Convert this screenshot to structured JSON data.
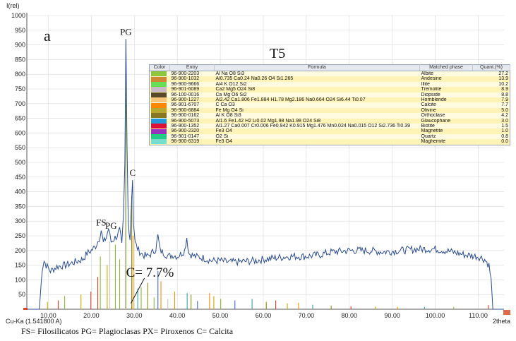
{
  "chart_data": {
    "type": "line",
    "ylabel": "I(rel)",
    "xlabel": "2theta",
    "radiation": "Cu-Ka (1.541800 A)",
    "xlim": [
      5,
      116
    ],
    "ylim": [
      0,
      1000
    ],
    "yticks": [
      50,
      100,
      150,
      200,
      250,
      300,
      350,
      400,
      450,
      500,
      550,
      600,
      650,
      700,
      750,
      800,
      850,
      900,
      950,
      1000
    ],
    "xticks": [
      10,
      20,
      30,
      40,
      50,
      60,
      70,
      80,
      90,
      100,
      110
    ],
    "xtick_labels": [
      "10.00",
      "20.00",
      "30.00",
      "40.00",
      "50.00",
      "60.00",
      "70.00",
      "80.00",
      "90.00",
      "100.00",
      "110.00"
    ],
    "series": [
      {
        "color": "#2b4c8c",
        "points": [
          [
            5,
            0
          ],
          [
            7.9,
            0
          ],
          [
            8.2,
            60
          ],
          [
            8.6,
            140
          ],
          [
            9,
            165
          ],
          [
            9.5,
            150
          ],
          [
            10.5,
            130
          ],
          [
            12,
            145
          ],
          [
            14,
            150
          ],
          [
            16,
            160
          ],
          [
            18,
            170
          ],
          [
            19,
            190
          ],
          [
            20,
            200
          ],
          [
            21,
            215
          ],
          [
            21.8,
            240
          ],
          [
            22.3,
            270
          ],
          [
            22.8,
            225
          ],
          [
            23.5,
            245
          ],
          [
            24,
            275
          ],
          [
            24.6,
            230
          ],
          [
            25.3,
            240
          ],
          [
            26,
            250
          ],
          [
            26.6,
            270
          ],
          [
            27.1,
            215
          ],
          [
            27.5,
            320
          ],
          [
            27.8,
            500
          ],
          [
            28.05,
            920
          ],
          [
            28.3,
            560
          ],
          [
            28.6,
            300
          ],
          [
            29,
            240
          ],
          [
            29.4,
            380
          ],
          [
            29.6,
            440
          ],
          [
            29.8,
            300
          ],
          [
            30.2,
            225
          ],
          [
            31,
            200
          ],
          [
            32,
            185
          ],
          [
            33,
            180
          ],
          [
            34,
            190
          ],
          [
            35,
            205
          ],
          [
            35.5,
            250
          ],
          [
            36,
            200
          ],
          [
            37,
            190
          ],
          [
            38,
            180
          ],
          [
            39,
            185
          ],
          [
            40,
            180
          ],
          [
            41,
            190
          ],
          [
            41.7,
            200
          ],
          [
            42.2,
            245
          ],
          [
            42.7,
            190
          ],
          [
            44,
            180
          ],
          [
            46,
            175
          ],
          [
            48,
            165
          ],
          [
            50,
            165
          ],
          [
            52,
            160
          ],
          [
            55,
            162
          ],
          [
            58,
            165
          ],
          [
            60,
            170
          ],
          [
            63,
            175
          ],
          [
            66,
            180
          ],
          [
            70,
            180
          ],
          [
            73,
            185
          ],
          [
            76,
            195
          ],
          [
            80,
            200
          ],
          [
            84,
            200
          ],
          [
            88,
            195
          ],
          [
            92,
            200
          ],
          [
            96,
            205
          ],
          [
            100,
            205
          ],
          [
            104,
            195
          ],
          [
            107,
            185
          ],
          [
            110,
            180
          ],
          [
            111.5,
            170
          ],
          [
            112.5,
            150
          ],
          [
            113,
            100
          ],
          [
            113.4,
            0
          ],
          [
            116,
            0
          ]
        ]
      }
    ],
    "peak_labels": [
      {
        "text": "PG",
        "x": 28.05,
        "y": 920
      },
      {
        "text": "C",
        "x": 29.6,
        "y": 440
      },
      {
        "text": "FS",
        "x": 22.3,
        "y": 270
      },
      {
        "text": "PG",
        "x": 24.6,
        "y": 260
      }
    ],
    "panel_label": "a",
    "sample_label": "T5",
    "annotation": {
      "text": "C= 7.7%",
      "x": 34,
      "y": 125
    },
    "stick_lines": [
      {
        "x": 28.05,
        "h": 920,
        "color": "#8ab83a"
      },
      {
        "x": 27.9,
        "h": 600,
        "color": "#d2c3c3"
      },
      {
        "x": 29.4,
        "h": 385,
        "color": "#8a8a1a"
      },
      {
        "x": 29.7,
        "h": 250,
        "color": "#ff8c00"
      },
      {
        "x": 24.3,
        "h": 230,
        "color": "#d2c3c3"
      },
      {
        "x": 25.6,
        "h": 220,
        "color": "#8ab83a"
      },
      {
        "x": 22.1,
        "h": 180,
        "color": "#8ab83a"
      },
      {
        "x": 23.7,
        "h": 150,
        "color": "#c8a800"
      },
      {
        "x": 26.6,
        "h": 170,
        "color": "#8ab83a"
      },
      {
        "x": 21.5,
        "h": 110,
        "color": "#dd3b2a"
      },
      {
        "x": 35.5,
        "h": 130,
        "color": "#4466dd"
      },
      {
        "x": 36.2,
        "h": 95,
        "color": "#ff8c00"
      },
      {
        "x": 30.8,
        "h": 70,
        "color": "#3aa0a0"
      },
      {
        "x": 33.1,
        "h": 90,
        "color": "#8a8a1a"
      },
      {
        "x": 13.8,
        "h": 45,
        "color": "#8ab83a"
      },
      {
        "x": 17.6,
        "h": 50,
        "color": "#c8a800"
      },
      {
        "x": 19.9,
        "h": 60,
        "color": "#dd3b2a"
      },
      {
        "x": 31.6,
        "h": 75,
        "color": "#8ab83a"
      },
      {
        "x": 39.4,
        "h": 60,
        "color": "#ff8c00"
      },
      {
        "x": 42.3,
        "h": 55,
        "color": "#3aa0a0"
      },
      {
        "x": 43.2,
        "h": 50,
        "color": "#8a8a1a"
      },
      {
        "x": 47.5,
        "h": 55,
        "color": "#ff8c00"
      },
      {
        "x": 48.5,
        "h": 45,
        "color": "#c8a800"
      },
      {
        "x": 50.1,
        "h": 35,
        "color": "#8ab83a"
      },
      {
        "x": 53.4,
        "h": 30,
        "color": "#4466dd"
      },
      {
        "x": 57.4,
        "h": 35,
        "color": "#3aa0a0"
      },
      {
        "x": 60.7,
        "h": 25,
        "color": "#8a8a1a"
      },
      {
        "x": 62.9,
        "h": 30,
        "color": "#dd3b2a"
      },
      {
        "x": 65.6,
        "h": 20,
        "color": "#c8a800"
      },
      {
        "x": 68.2,
        "h": 22,
        "color": "#ff8c00"
      },
      {
        "x": 12.3,
        "h": 30,
        "color": "#dd3b2a"
      },
      {
        "x": 9.8,
        "h": 25,
        "color": "#c8a800"
      },
      {
        "x": 34.6,
        "h": 40,
        "color": "#8ab83a"
      },
      {
        "x": 37.8,
        "h": 35,
        "color": "#d2c3c3"
      },
      {
        "x": 44.7,
        "h": 28,
        "color": "#4466dd"
      },
      {
        "x": 71.5,
        "h": 15,
        "color": "#3aa0a0"
      },
      {
        "x": 75.8,
        "h": 12,
        "color": "#8a8a1a"
      },
      {
        "x": 80.4,
        "h": 10,
        "color": "#dd3b2a"
      },
      {
        "x": 86.1,
        "h": 9,
        "color": "#c8a800"
      },
      {
        "x": 91.2,
        "h": 8,
        "color": "#ff8c00"
      },
      {
        "x": 97.5,
        "h": 8,
        "color": "#3aa0a0"
      },
      {
        "x": 104.3,
        "h": 8,
        "color": "#8ab83a"
      },
      {
        "x": 112.4,
        "h": 14,
        "color": "#dd3b2a"
      }
    ]
  },
  "phase_table": {
    "columns": [
      "Color",
      "Entry",
      "Formula",
      "Matched phase",
      "Quant.(%)"
    ],
    "rows": [
      {
        "color": "#8cc63f",
        "entry": "96-900-2203",
        "formula": "Al Na O8 Si3",
        "phase": "Albite",
        "quant": "27.2"
      },
      {
        "color": "#cc8833",
        "entry": "96-900-1032",
        "formula": "Al0.735 Ca0.24 Na0.26 O4 Si1.265",
        "phase": "Andesine",
        "quant": "13.9"
      },
      {
        "color": "#66dd55",
        "entry": "96-900-9666",
        "formula": "Al4 K O12 Si2",
        "phase": "Illite",
        "quant": "10.2"
      },
      {
        "color": "#c8b8c8",
        "entry": "96-901-6089",
        "formula": "Ca2 Mg5 O24 Si8",
        "phase": "Tremolite",
        "quant": "8.9"
      },
      {
        "color": "#5a4a2a",
        "entry": "96-100-0016",
        "formula": "Ca Mg O6 Si2",
        "phase": "Diopside",
        "quant": "8.8"
      },
      {
        "color": "#f5c879",
        "entry": "96-900-1227",
        "formula": "Al2.42 Ca1.806 Fe1.884 H1.78 Mg2.186 Na0.664 O24 Si6.44 Ti0.07",
        "phase": "Hornblende",
        "quant": "7.9"
      },
      {
        "color": "#ff8800",
        "entry": "96-901-6707",
        "formula": "C Ca O3",
        "phase": "Calcite",
        "quant": "7.7"
      },
      {
        "color": "#b8a830",
        "entry": "96-900-6884",
        "formula": "Fe Mg O4 Si",
        "phase": "Olivine",
        "quant": "5.0"
      },
      {
        "color": "#887722",
        "entry": "96-900-0162",
        "formula": "Al K O8 Si3",
        "phase": "Orthoclase",
        "quant": "4.2"
      },
      {
        "color": "#2299dd",
        "entry": "96-900-5073",
        "formula": "Al1.6 Fe1.42 H2 Li0.02 Mg1.98 Na1.98 O24 Si8",
        "phase": "Glaucophane",
        "quant": "3.0"
      },
      {
        "color": "#dd1133",
        "entry": "96-900-1352",
        "formula": "Al1.27 Ca0.007 Cr0.006 Fe0.942 K0.915 Mg1.476 Mn0.024 Na0.015 O12 Si2.736 Ti0.39",
        "phase": "Biotite",
        "quant": "1.5"
      },
      {
        "color": "#9933bb",
        "entry": "96-900-2320",
        "formula": "Fe3 O4",
        "phase": "Magnetite",
        "quant": "1.0"
      },
      {
        "color": "#22cc88",
        "entry": "96-901-0147",
        "formula": "O2 Si",
        "phase": "Quartz",
        "quant": "0.8"
      },
      {
        "color": "#77ddcc",
        "entry": "96-900-6319",
        "formula": "Fe3 O4",
        "phase": "Maghemite",
        "quant": "0.0"
      }
    ]
  },
  "footer_legend": "FS= Filosilicatos  PG= Plagioclasas  PX= Piroxenos  C= Calcita"
}
